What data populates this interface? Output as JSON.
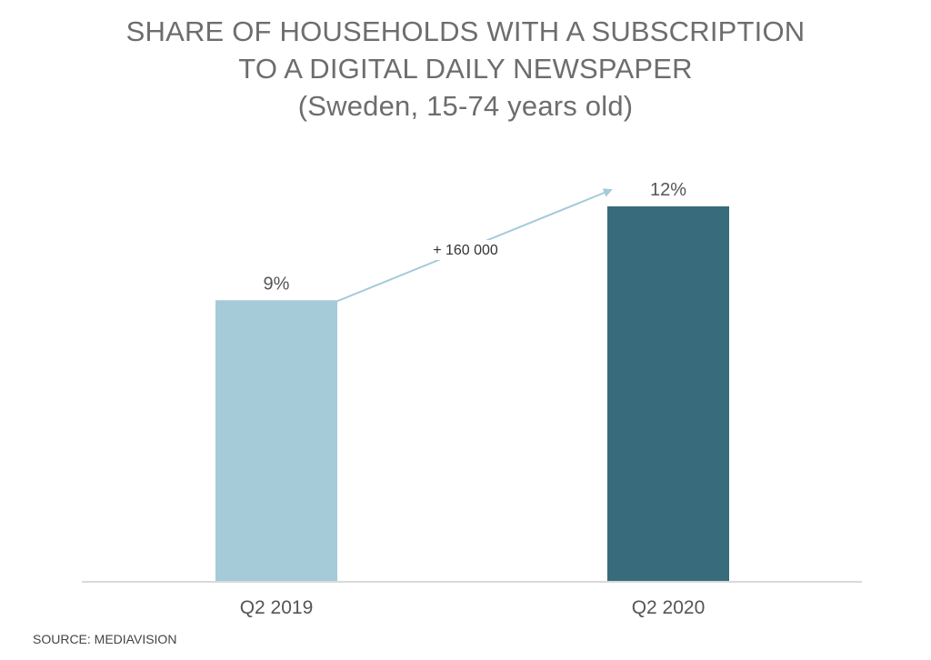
{
  "title": {
    "line1": "SHARE OF HOUSEHOLDS WITH A SUBSCRIPTION",
    "line2": "TO A DIGITAL DAILY NEWSPAPER",
    "line3": "(Sweden, 15-74 years old)"
  },
  "source": "SOURCE: MEDIAVISION",
  "chart_data": {
    "type": "bar",
    "title": "SHARE OF HOUSEHOLDS WITH A SUBSCRIPTION TO A DIGITAL DAILY NEWSPAPER",
    "subtitle": "(Sweden, 15-74 years old)",
    "categories": [
      "Q2 2019",
      "Q2 2020"
    ],
    "values": [
      9,
      12
    ],
    "data_labels": [
      "9%",
      "12%"
    ],
    "colors": [
      "#a5cad8",
      "#386b7b"
    ],
    "ylim": [
      0,
      12
    ],
    "grid": false,
    "annotation": {
      "text": "+ 160 000",
      "color": "#a5cad8"
    }
  }
}
